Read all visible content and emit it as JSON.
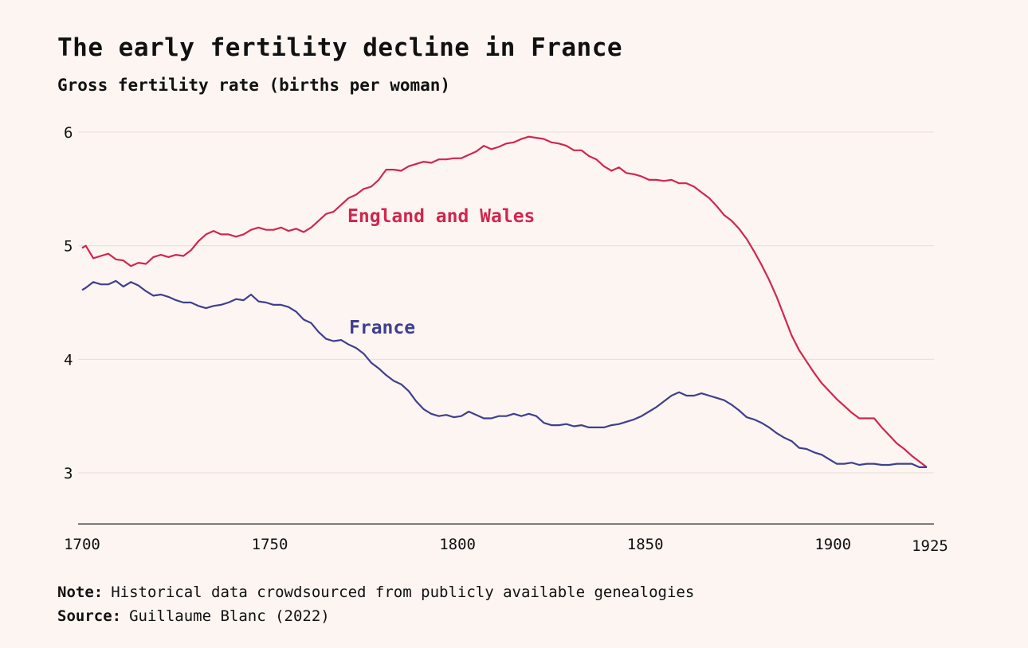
{
  "title": "The early fertility decline in France",
  "subtitle": "Gross fertility rate (births per woman)",
  "note": {
    "label": "Note:",
    "text": "Historical data crowdsourced from publicly available genealogies"
  },
  "source": {
    "label": "Source:",
    "text": "Guillaume Blanc (2022)"
  },
  "colors": {
    "england": "#d1264f",
    "france": "#3f3f8f",
    "grid": "#e6dcd8",
    "axis": "#555555",
    "background": "#fdf5f1"
  },
  "chart_data": {
    "type": "line",
    "title": "The early fertility decline in France",
    "ylabel": "Gross fertility rate (births per woman)",
    "xlim": [
      1700,
      1925
    ],
    "ylim": [
      2.55,
      6.1
    ],
    "xticks": [
      1700,
      1750,
      1800,
      1850,
      1900,
      1925
    ],
    "yticks": [
      3,
      4,
      5,
      6
    ],
    "grid": "horizontal",
    "series": [
      {
        "name": "England and Wales",
        "color": "#d1264f",
        "x": [
          1700,
          1701,
          1703,
          1705,
          1707,
          1709,
          1711,
          1713,
          1715,
          1717,
          1719,
          1721,
          1723,
          1725,
          1727,
          1729,
          1731,
          1733,
          1735,
          1737,
          1739,
          1741,
          1743,
          1745,
          1747,
          1749,
          1751,
          1753,
          1755,
          1757,
          1759,
          1761,
          1763,
          1765,
          1767,
          1769,
          1771,
          1773,
          1775,
          1777,
          1779,
          1781,
          1783,
          1785,
          1787,
          1789,
          1791,
          1793,
          1795,
          1797,
          1799,
          1801,
          1803,
          1805,
          1807,
          1809,
          1811,
          1813,
          1815,
          1817,
          1819,
          1821,
          1823,
          1825,
          1827,
          1829,
          1831,
          1833,
          1835,
          1837,
          1839,
          1841,
          1843,
          1845,
          1847,
          1849,
          1851,
          1853,
          1855,
          1857,
          1859,
          1861,
          1863,
          1865,
          1867,
          1869,
          1871,
          1873,
          1875,
          1877,
          1879,
          1881,
          1883,
          1885,
          1887,
          1889,
          1891,
          1893,
          1895,
          1897,
          1899,
          1901,
          1903,
          1905,
          1907,
          1909,
          1911,
          1913,
          1915,
          1917,
          1919,
          1921,
          1923,
          1925
        ],
        "y": [
          4.98,
          5.0,
          4.89,
          4.91,
          4.93,
          4.88,
          4.87,
          4.82,
          4.85,
          4.84,
          4.9,
          4.92,
          4.9,
          4.92,
          4.91,
          4.96,
          5.04,
          5.1,
          5.13,
          5.1,
          5.1,
          5.08,
          5.1,
          5.14,
          5.16,
          5.14,
          5.14,
          5.16,
          5.13,
          5.15,
          5.12,
          5.16,
          5.22,
          5.28,
          5.3,
          5.36,
          5.42,
          5.45,
          5.5,
          5.52,
          5.58,
          5.67,
          5.67,
          5.66,
          5.7,
          5.72,
          5.74,
          5.73,
          5.76,
          5.76,
          5.77,
          5.77,
          5.8,
          5.83,
          5.88,
          5.85,
          5.87,
          5.9,
          5.91,
          5.94,
          5.96,
          5.95,
          5.94,
          5.91,
          5.9,
          5.88,
          5.84,
          5.84,
          5.79,
          5.76,
          5.7,
          5.66,
          5.69,
          5.64,
          5.63,
          5.61,
          5.58,
          5.58,
          5.57,
          5.58,
          5.55,
          5.55,
          5.52,
          5.47,
          5.42,
          5.35,
          5.27,
          5.22,
          5.15,
          5.06,
          4.95,
          4.83,
          4.7,
          4.55,
          4.38,
          4.21,
          4.08,
          3.98,
          3.88,
          3.79,
          3.72,
          3.65,
          3.59,
          3.53,
          3.48,
          3.48,
          3.48,
          3.4,
          3.33,
          3.26,
          3.21,
          3.15,
          3.1,
          3.05
        ]
      },
      {
        "name": "France",
        "color": "#3f3f8f",
        "x": [
          1700,
          1701,
          1703,
          1705,
          1707,
          1709,
          1711,
          1713,
          1715,
          1717,
          1719,
          1721,
          1723,
          1725,
          1727,
          1729,
          1731,
          1733,
          1735,
          1737,
          1739,
          1741,
          1743,
          1745,
          1747,
          1749,
          1751,
          1753,
          1755,
          1757,
          1759,
          1761,
          1763,
          1765,
          1767,
          1769,
          1771,
          1773,
          1775,
          1777,
          1779,
          1781,
          1783,
          1785,
          1787,
          1789,
          1791,
          1793,
          1795,
          1797,
          1799,
          1801,
          1803,
          1805,
          1807,
          1809,
          1811,
          1813,
          1815,
          1817,
          1819,
          1821,
          1823,
          1825,
          1827,
          1829,
          1831,
          1833,
          1835,
          1837,
          1839,
          1841,
          1843,
          1845,
          1847,
          1849,
          1851,
          1853,
          1855,
          1857,
          1859,
          1861,
          1863,
          1865,
          1867,
          1869,
          1871,
          1873,
          1875,
          1877,
          1879,
          1881,
          1883,
          1885,
          1887,
          1889,
          1891,
          1893,
          1895,
          1897,
          1899,
          1901,
          1903,
          1905,
          1907,
          1909,
          1911,
          1913,
          1915,
          1917,
          1919,
          1921,
          1923,
          1925
        ],
        "y": [
          4.61,
          4.63,
          4.68,
          4.66,
          4.66,
          4.69,
          4.64,
          4.68,
          4.65,
          4.6,
          4.56,
          4.57,
          4.55,
          4.52,
          4.5,
          4.5,
          4.47,
          4.45,
          4.47,
          4.48,
          4.5,
          4.53,
          4.52,
          4.57,
          4.51,
          4.5,
          4.48,
          4.48,
          4.46,
          4.42,
          4.35,
          4.32,
          4.24,
          4.18,
          4.16,
          4.17,
          4.13,
          4.1,
          4.05,
          3.97,
          3.92,
          3.86,
          3.81,
          3.78,
          3.72,
          3.63,
          3.56,
          3.52,
          3.5,
          3.51,
          3.49,
          3.5,
          3.54,
          3.51,
          3.48,
          3.48,
          3.5,
          3.5,
          3.52,
          3.5,
          3.52,
          3.5,
          3.44,
          3.42,
          3.42,
          3.43,
          3.41,
          3.42,
          3.4,
          3.4,
          3.4,
          3.42,
          3.43,
          3.45,
          3.47,
          3.5,
          3.54,
          3.58,
          3.63,
          3.68,
          3.71,
          3.68,
          3.68,
          3.7,
          3.68,
          3.66,
          3.64,
          3.6,
          3.55,
          3.49,
          3.47,
          3.44,
          3.4,
          3.35,
          3.31,
          3.28,
          3.22,
          3.21,
          3.18,
          3.16,
          3.12,
          3.08,
          3.08,
          3.09,
          3.07,
          3.08,
          3.08,
          3.07,
          3.07,
          3.08,
          3.08,
          3.08,
          3.05,
          3.05
        ]
      }
    ]
  }
}
